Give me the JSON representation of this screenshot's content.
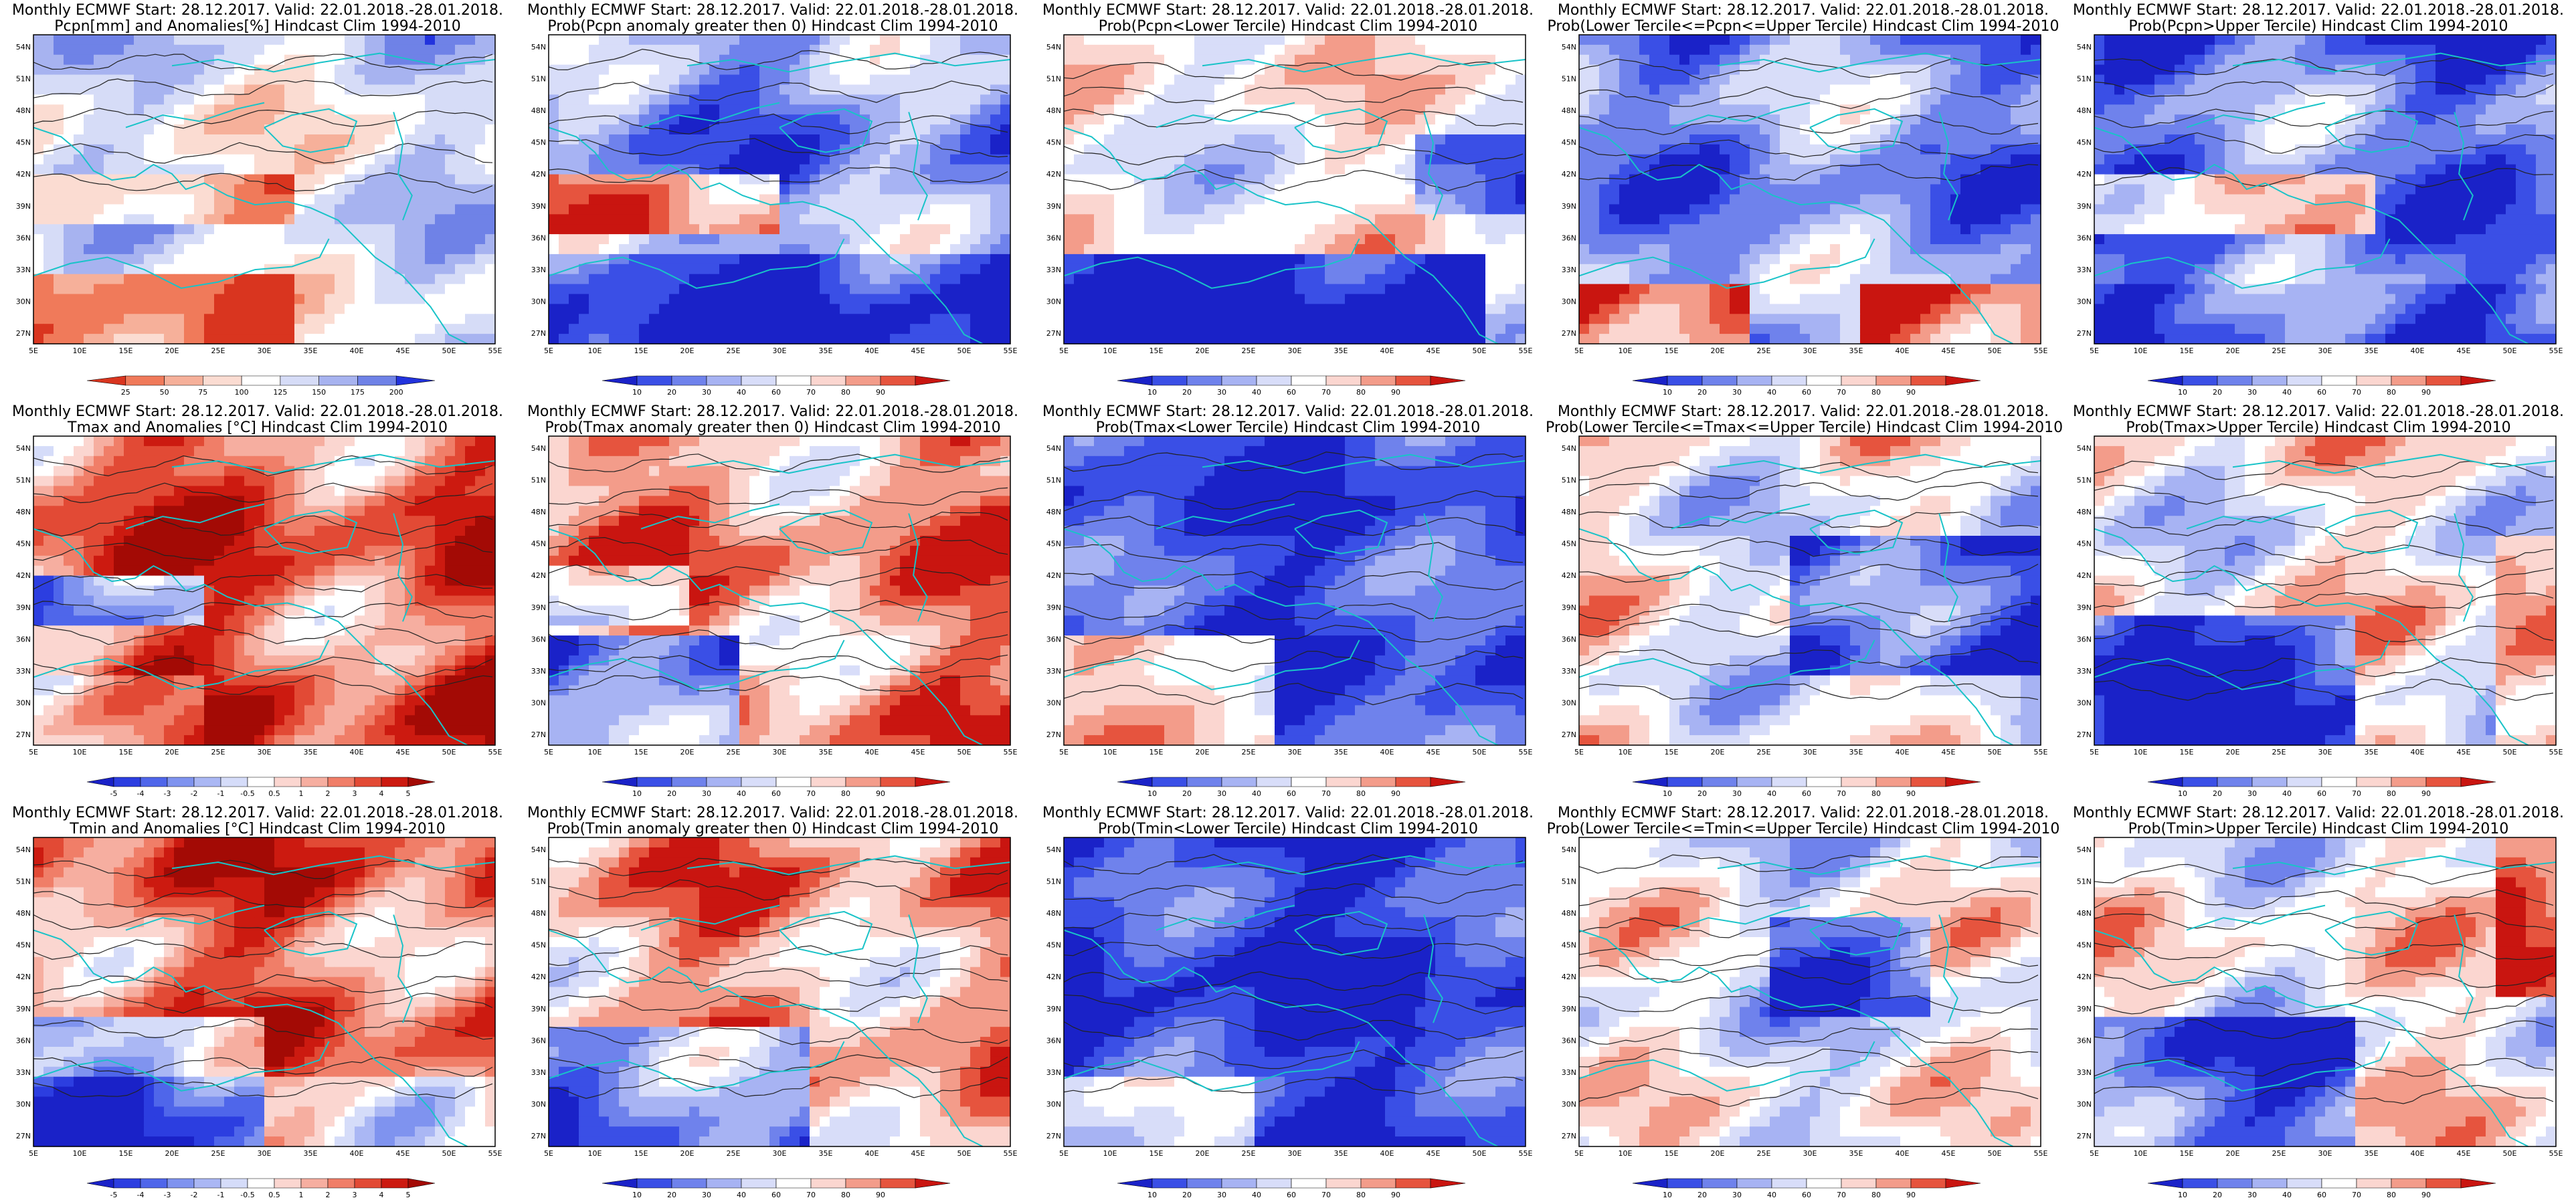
{
  "common": {
    "lat_labels": [
      "54N",
      "51N",
      "48N",
      "45N",
      "42N",
      "39N",
      "36N",
      "33N",
      "30N",
      "27N"
    ],
    "lon_labels": [
      "5E",
      "10E",
      "15E",
      "20E",
      "25E",
      "30E",
      "35E",
      "40E",
      "45E",
      "50E",
      "55E"
    ]
  },
  "legends": {
    "pcpn_anom": {
      "ticks": [
        "25",
        "50",
        "75",
        "100",
        "125",
        "150",
        "175",
        "200"
      ],
      "colors": [
        "#d9351f",
        "#f07a5a",
        "#f6b09a",
        "#fbdcd2",
        "#ffffff",
        "#d6dcf7",
        "#a7b3f0",
        "#6f82e7",
        "#2233dd"
      ]
    },
    "temp_anom": {
      "ticks": [
        "-5",
        "-4",
        "-3",
        "-2",
        "-1",
        "-0.5",
        "0.5",
        "1",
        "2",
        "3",
        "4",
        "5"
      ],
      "colors": [
        "#1a22c8",
        "#2c3ee0",
        "#4f66ea",
        "#7f93ef",
        "#aab7f4",
        "#d5dcf9",
        "#ffffff",
        "#fbd6d0",
        "#f6aea0",
        "#f07e68",
        "#e24a35",
        "#cc1a10",
        "#a30a05"
      ]
    },
    "prob": {
      "ticks": [
        "10",
        "20",
        "30",
        "40",
        "60",
        "70",
        "80",
        "90"
      ],
      "colors": [
        "#1a22c8",
        "#3a4fe6",
        "#6f82ec",
        "#a7b3f3",
        "#d8ddf9",
        "#ffffff",
        "#fbd6d0",
        "#f39c8a",
        "#e6543e",
        "#c91510"
      ]
    }
  },
  "panels": [
    {
      "line1": "Monthly ECMWF Start: 28.12.2017. Valid: 22.01.2018.-28.01.2018.",
      "line2": "Pcpn[mm] and Anomalies[%] Hindcast Clim 1994-2010",
      "legend": "pcpn_anom",
      "palette": "pcpn",
      "pattern": 0
    },
    {
      "line1": "Monthly ECMWF Start: 28.12.2017. Valid: 22.01.2018.-28.01.2018.",
      "line2": "Prob(Pcpn anomaly greater then 0) Hindcast Clim 1994-2010",
      "legend": "prob",
      "palette": "prob",
      "pattern": 1
    },
    {
      "line1": "Monthly ECMWF Start: 28.12.2017. Valid: 22.01.2018.-28.01.2018.",
      "line2": "Prob(Pcpn<Lower Tercile) Hindcast Clim 1994-2010",
      "legend": "prob",
      "palette": "prob",
      "pattern": 2
    },
    {
      "line1": "Monthly ECMWF Start: 28.12.2017. Valid: 22.01.2018.-28.01.2018.",
      "line2": "Prob(Lower Tercile<=Pcpn<=Upper Tercile) Hindcast Clim 1994-2010",
      "legend": "prob",
      "palette": "prob",
      "pattern": 3
    },
    {
      "line1": "Monthly ECMWF Start: 28.12.2017. Valid: 22.01.2018.-28.01.2018.",
      "line2": "Prob(Pcpn>Upper Tercile) Hindcast Clim 1994-2010",
      "legend": "prob",
      "palette": "prob",
      "pattern": 4
    },
    {
      "line1": "Monthly ECMWF Start: 28.12.2017. Valid: 22.01.2018.-28.01.2018.",
      "line2": "Tmax and Anomalies [°C] Hindcast Clim 1994-2010",
      "legend": "temp_anom",
      "palette": "temp",
      "pattern": 5
    },
    {
      "line1": "Monthly ECMWF Start: 28.12.2017. Valid: 22.01.2018.-28.01.2018.",
      "line2": "Prob(Tmax anomaly greater then 0) Hindcast Clim 1994-2010",
      "legend": "prob",
      "palette": "prob",
      "pattern": 6
    },
    {
      "line1": "Monthly ECMWF Start: 28.12.2017. Valid: 22.01.2018.-28.01.2018.",
      "line2": "Prob(Tmax<Lower Tercile) Hindcast Clim 1994-2010",
      "legend": "prob",
      "palette": "prob",
      "pattern": 7
    },
    {
      "line1": "Monthly ECMWF Start: 28.12.2017. Valid: 22.01.2018.-28.01.2018.",
      "line2": "Prob(Lower Tercile<=Tmax<=Upper Tercile) Hindcast Clim 1994-2010",
      "legend": "prob",
      "palette": "prob",
      "pattern": 8
    },
    {
      "line1": "Monthly ECMWF Start: 28.12.2017. Valid: 22.01.2018.-28.01.2018.",
      "line2": "Prob(Tmax>Upper Tercile) Hindcast Clim 1994-2010",
      "legend": "prob",
      "palette": "prob",
      "pattern": 9
    },
    {
      "line1": "Monthly ECMWF Start: 28.12.2017. Valid: 22.01.2018.-28.01.2018.",
      "line2": "Tmin and Anomalies [°C] Hindcast Clim 1994-2010",
      "legend": "temp_anom",
      "palette": "temp",
      "pattern": 10
    },
    {
      "line1": "Monthly ECMWF Start: 28.12.2017. Valid: 22.01.2018.-28.01.2018.",
      "line2": "Prob(Tmin anomaly greater then 0) Hindcast Clim 1994-2010",
      "legend": "prob",
      "palette": "prob",
      "pattern": 11
    },
    {
      "line1": "Monthly ECMWF Start: 28.12.2017. Valid: 22.01.2018.-28.01.2018.",
      "line2": "Prob(Tmin<Lower Tercile) Hindcast Clim 1994-2010",
      "legend": "prob",
      "palette": "prob",
      "pattern": 12
    },
    {
      "line1": "Monthly ECMWF Start: 28.12.2017. Valid: 22.01.2018.-28.01.2018.",
      "line2": "Prob(Lower Tercile<=Tmin<=Upper Tercile) Hindcast Clim 1994-2010",
      "legend": "prob",
      "palette": "prob",
      "pattern": 13
    },
    {
      "line1": "Monthly ECMWF Start: 28.12.2017. Valid: 22.01.2018.-28.01.2018.",
      "line2": "Prob(Tmin>Upper Tercile) Hindcast Clim 1994-2010",
      "legend": "prob",
      "palette": "prob",
      "pattern": 14
    }
  ]
}
